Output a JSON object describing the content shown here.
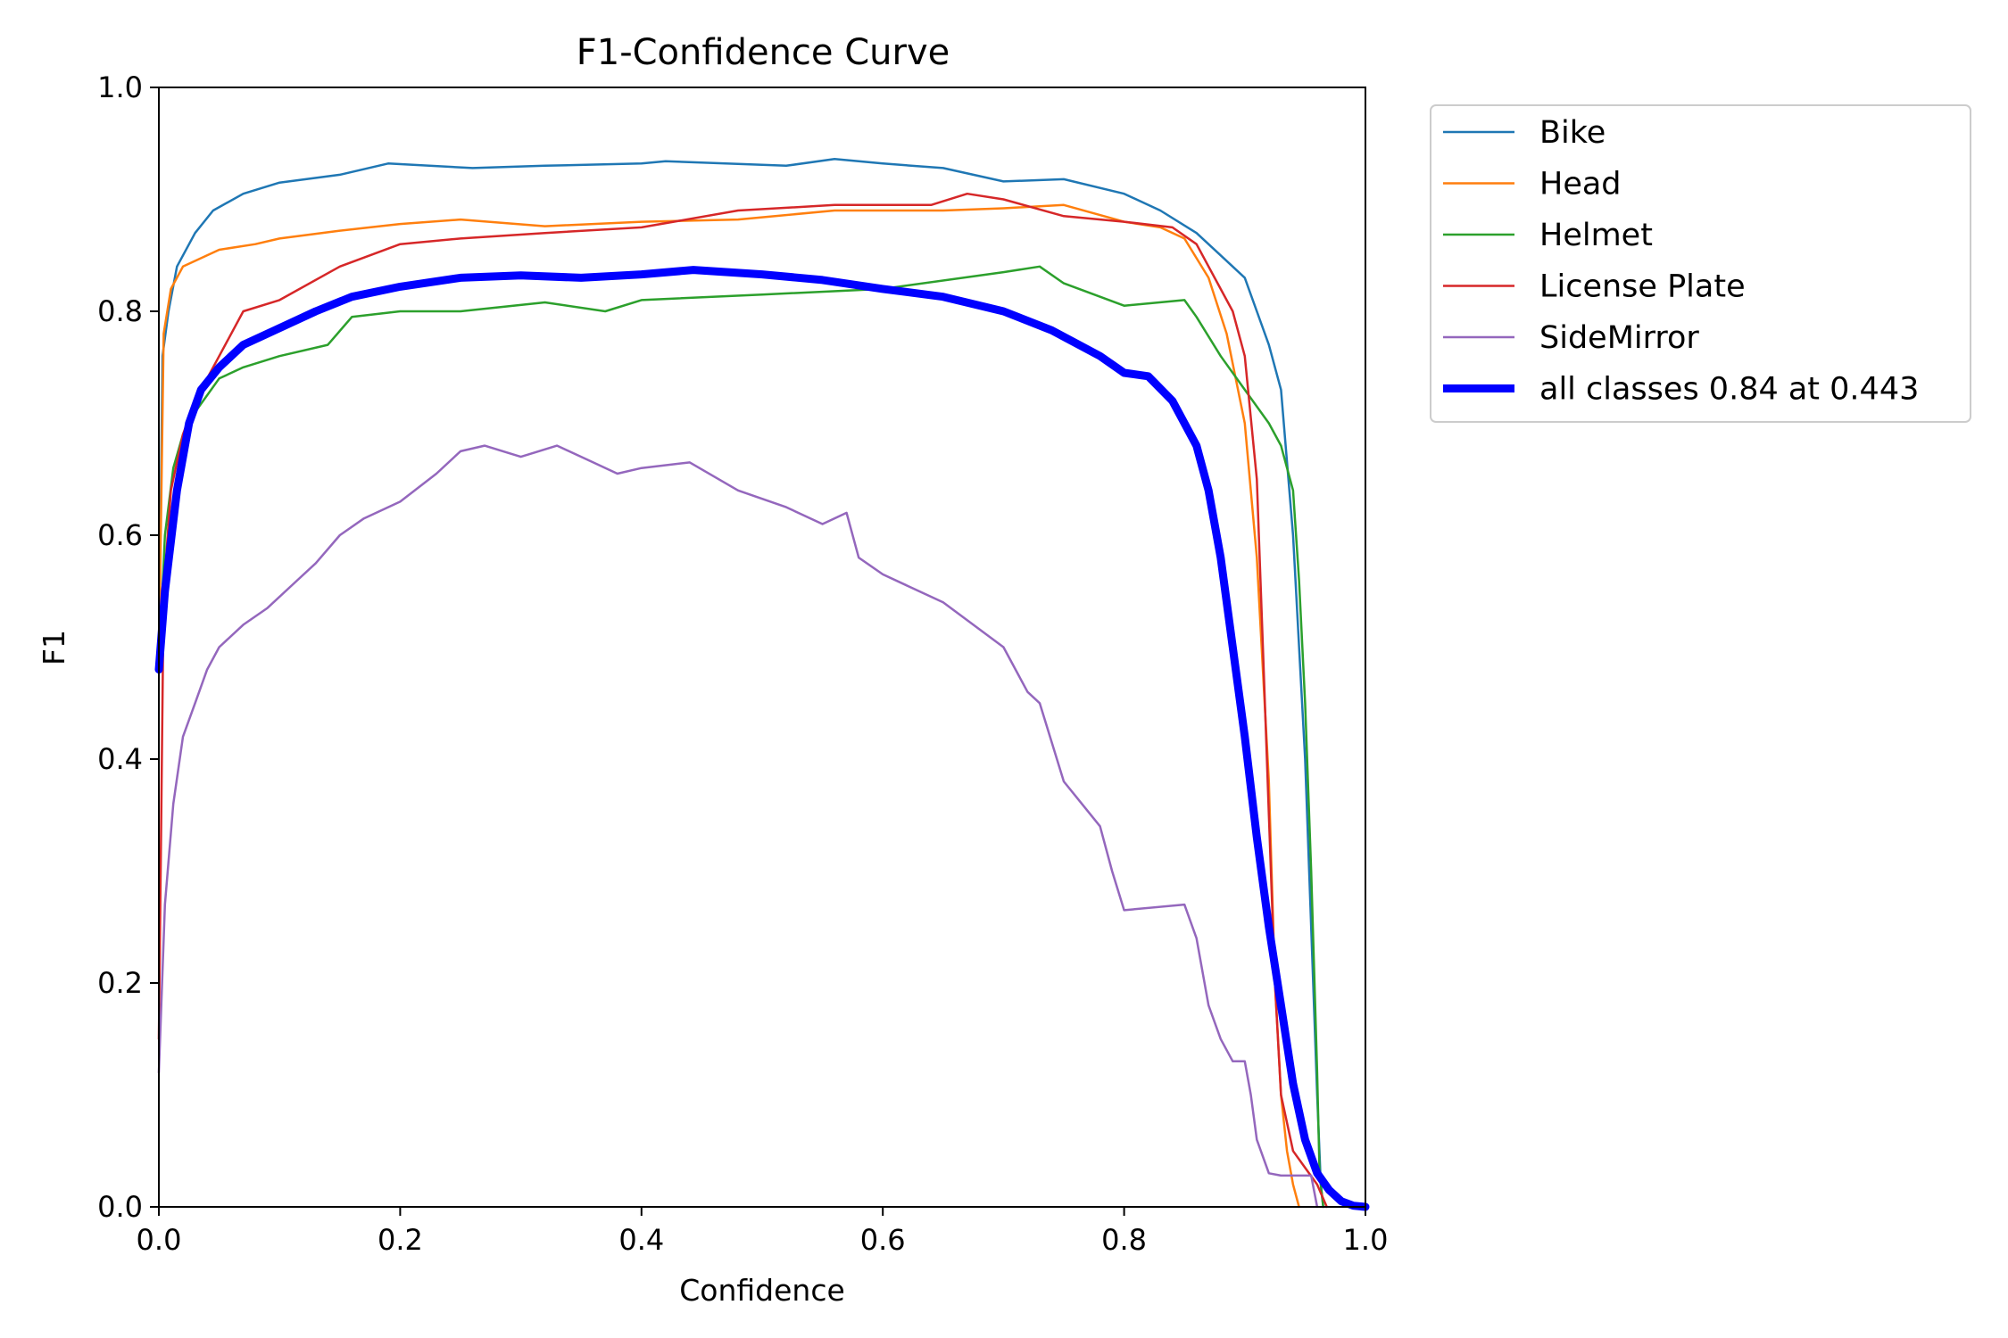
{
  "chart_data": {
    "type": "line",
    "title": "F1-Confidence Curve",
    "xlabel": "Confidence",
    "ylabel": "F1",
    "xlim": [
      0,
      1
    ],
    "ylim": [
      0,
      1
    ],
    "xticks": [
      "0.0",
      "0.2",
      "0.4",
      "0.6",
      "0.8",
      "1.0"
    ],
    "yticks": [
      "0.0",
      "0.2",
      "0.4",
      "0.6",
      "0.8",
      "1.0"
    ],
    "grid": false,
    "legend_position": "outside-top-right",
    "series": [
      {
        "name": "Bike",
        "color": "#1f77b4",
        "x": [
          0.0,
          0.003,
          0.008,
          0.015,
          0.03,
          0.045,
          0.07,
          0.1,
          0.15,
          0.19,
          0.26,
          0.32,
          0.4,
          0.42,
          0.52,
          0.56,
          0.6,
          0.65,
          0.7,
          0.75,
          0.8,
          0.83,
          0.86,
          0.88,
          0.9,
          0.91,
          0.92,
          0.93,
          0.94,
          0.95,
          0.955,
          0.96,
          0.963,
          0.965
        ],
        "y": [
          0.48,
          0.76,
          0.8,
          0.84,
          0.87,
          0.89,
          0.905,
          0.915,
          0.922,
          0.932,
          0.928,
          0.93,
          0.932,
          0.934,
          0.93,
          0.936,
          0.932,
          0.928,
          0.916,
          0.918,
          0.905,
          0.89,
          0.87,
          0.85,
          0.83,
          0.8,
          0.77,
          0.73,
          0.6,
          0.4,
          0.25,
          0.1,
          0.02,
          0.0
        ]
      },
      {
        "name": "Head",
        "color": "#ff7f0e",
        "x": [
          0.0,
          0.004,
          0.01,
          0.02,
          0.05,
          0.08,
          0.1,
          0.15,
          0.2,
          0.25,
          0.32,
          0.4,
          0.48,
          0.56,
          0.65,
          0.7,
          0.75,
          0.8,
          0.83,
          0.85,
          0.87,
          0.885,
          0.9,
          0.91,
          0.92,
          0.925,
          0.93,
          0.935,
          0.94,
          0.945
        ],
        "y": [
          0.48,
          0.78,
          0.82,
          0.84,
          0.855,
          0.86,
          0.865,
          0.872,
          0.878,
          0.882,
          0.876,
          0.88,
          0.882,
          0.89,
          0.89,
          0.892,
          0.895,
          0.88,
          0.875,
          0.865,
          0.83,
          0.78,
          0.7,
          0.58,
          0.38,
          0.2,
          0.1,
          0.05,
          0.02,
          0.0
        ]
      },
      {
        "name": "Helmet",
        "color": "#2ca02c",
        "x": [
          0.0,
          0.005,
          0.012,
          0.02,
          0.03,
          0.05,
          0.07,
          0.1,
          0.14,
          0.16,
          0.2,
          0.25,
          0.32,
          0.37,
          0.4,
          0.5,
          0.6,
          0.7,
          0.73,
          0.75,
          0.8,
          0.85,
          0.86,
          0.88,
          0.9,
          0.92,
          0.93,
          0.94,
          0.945,
          0.95,
          0.955,
          0.96,
          0.962,
          0.965
        ],
        "y": [
          0.48,
          0.6,
          0.66,
          0.69,
          0.71,
          0.74,
          0.75,
          0.76,
          0.77,
          0.795,
          0.8,
          0.8,
          0.808,
          0.8,
          0.81,
          0.815,
          0.82,
          0.835,
          0.84,
          0.825,
          0.805,
          0.81,
          0.795,
          0.76,
          0.73,
          0.7,
          0.68,
          0.64,
          0.56,
          0.45,
          0.3,
          0.12,
          0.03,
          0.0
        ]
      },
      {
        "name": "License Plate",
        "color": "#d62728",
        "x": [
          0.0,
          0.004,
          0.01,
          0.02,
          0.03,
          0.05,
          0.07,
          0.1,
          0.15,
          0.2,
          0.25,
          0.32,
          0.4,
          0.48,
          0.56,
          0.64,
          0.67,
          0.7,
          0.75,
          0.8,
          0.84,
          0.86,
          0.875,
          0.89,
          0.9,
          0.91,
          0.915,
          0.92,
          0.925,
          0.93,
          0.94,
          0.95,
          0.96,
          0.968
        ],
        "y": [
          0.15,
          0.55,
          0.64,
          0.69,
          0.72,
          0.76,
          0.8,
          0.81,
          0.84,
          0.86,
          0.865,
          0.87,
          0.875,
          0.89,
          0.895,
          0.895,
          0.905,
          0.9,
          0.885,
          0.88,
          0.875,
          0.86,
          0.83,
          0.8,
          0.76,
          0.65,
          0.5,
          0.35,
          0.2,
          0.1,
          0.05,
          0.035,
          0.02,
          0.0
        ]
      },
      {
        "name": "SideMirror",
        "color": "#9467bd",
        "x": [
          0.0,
          0.005,
          0.012,
          0.02,
          0.03,
          0.04,
          0.05,
          0.07,
          0.09,
          0.11,
          0.13,
          0.15,
          0.17,
          0.2,
          0.23,
          0.25,
          0.27,
          0.3,
          0.33,
          0.36,
          0.38,
          0.4,
          0.44,
          0.48,
          0.52,
          0.55,
          0.57,
          0.58,
          0.6,
          0.65,
          0.7,
          0.72,
          0.73,
          0.75,
          0.78,
          0.79,
          0.8,
          0.85,
          0.86,
          0.87,
          0.88,
          0.89,
          0.9,
          0.905,
          0.91,
          0.92,
          0.93,
          0.955,
          0.96
        ],
        "y": [
          0.12,
          0.27,
          0.36,
          0.42,
          0.45,
          0.48,
          0.5,
          0.52,
          0.535,
          0.555,
          0.575,
          0.6,
          0.615,
          0.63,
          0.655,
          0.675,
          0.68,
          0.67,
          0.68,
          0.665,
          0.655,
          0.66,
          0.665,
          0.64,
          0.625,
          0.61,
          0.62,
          0.58,
          0.565,
          0.54,
          0.5,
          0.46,
          0.45,
          0.38,
          0.34,
          0.3,
          0.265,
          0.27,
          0.24,
          0.18,
          0.15,
          0.13,
          0.13,
          0.1,
          0.06,
          0.03,
          0.028,
          0.028,
          0.0
        ]
      },
      {
        "name": "all classes 0.84 at 0.443",
        "color": "#0000ff",
        "x": [
          0.0,
          0.005,
          0.015,
          0.025,
          0.035,
          0.05,
          0.07,
          0.1,
          0.13,
          0.16,
          0.2,
          0.25,
          0.3,
          0.35,
          0.4,
          0.443,
          0.5,
          0.55,
          0.6,
          0.65,
          0.7,
          0.74,
          0.78,
          0.8,
          0.82,
          0.84,
          0.86,
          0.87,
          0.88,
          0.89,
          0.9,
          0.91,
          0.92,
          0.93,
          0.94,
          0.95,
          0.96,
          0.97,
          0.98,
          0.99,
          1.0
        ],
        "y": [
          0.48,
          0.55,
          0.64,
          0.7,
          0.73,
          0.75,
          0.77,
          0.785,
          0.8,
          0.813,
          0.822,
          0.83,
          0.832,
          0.83,
          0.833,
          0.837,
          0.833,
          0.828,
          0.82,
          0.813,
          0.8,
          0.783,
          0.76,
          0.745,
          0.742,
          0.72,
          0.68,
          0.64,
          0.58,
          0.5,
          0.42,
          0.33,
          0.25,
          0.18,
          0.11,
          0.06,
          0.03,
          0.015,
          0.005,
          0.001,
          0.0
        ]
      }
    ]
  }
}
